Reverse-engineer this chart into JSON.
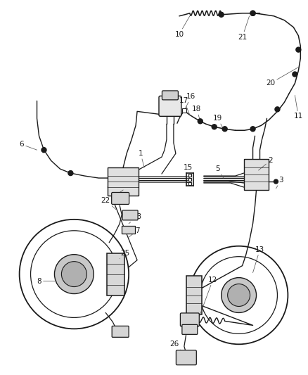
{
  "bg_color": "#ffffff",
  "line_color": "#1a1a1a",
  "text_color": "#1a1a1a",
  "fig_width": 4.39,
  "fig_height": 5.33,
  "dpi": 100
}
